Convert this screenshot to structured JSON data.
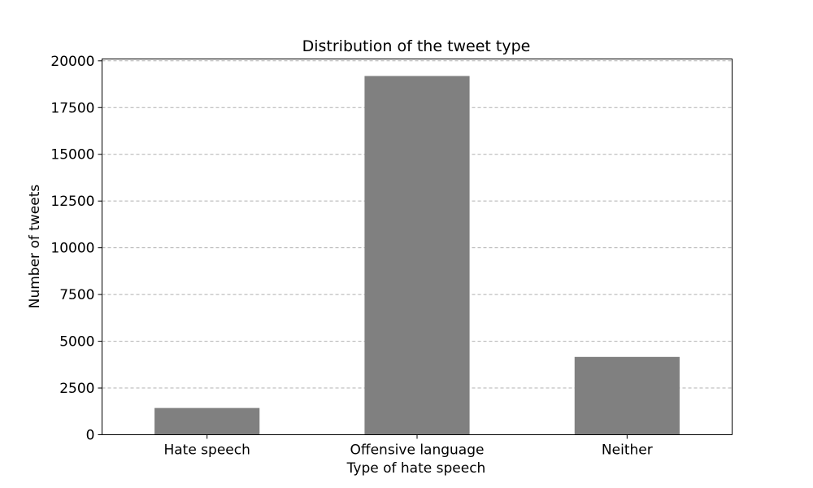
{
  "chart_data": {
    "type": "bar",
    "title": "Distribution of the tweet type",
    "xlabel": "Type of hate speech",
    "ylabel": "Number of tweets",
    "categories": [
      "Hate speech",
      "Offensive language",
      "Neither"
    ],
    "values": [
      1430,
      19190,
      4163
    ],
    "ylim": [
      0,
      20100
    ],
    "yticks": [
      0,
      2500,
      5000,
      7500,
      10000,
      12500,
      15000,
      17500,
      20000
    ],
    "grid": true,
    "bar_color": "#808080"
  }
}
